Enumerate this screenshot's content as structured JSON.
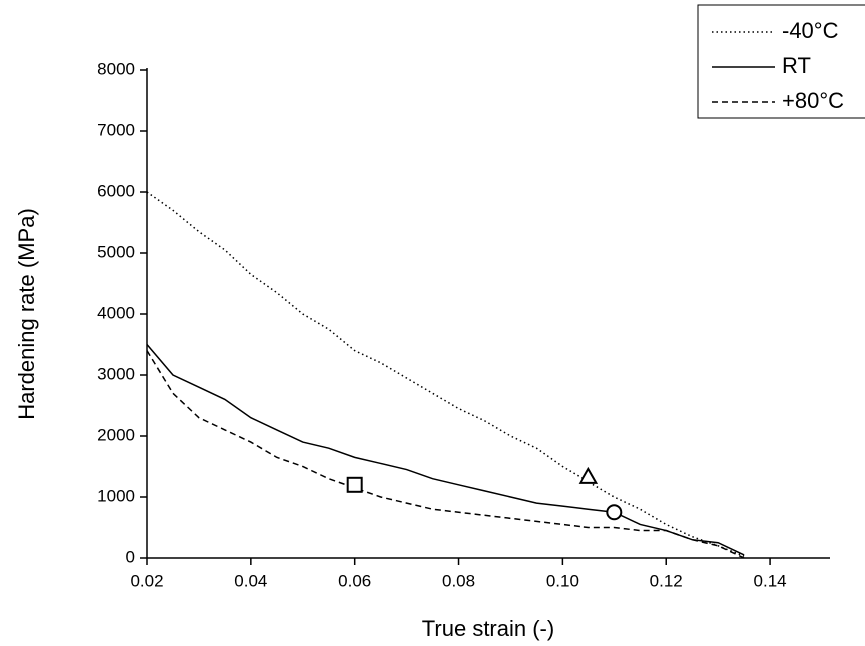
{
  "chart_data": {
    "type": "line",
    "xlabel": "True strain (-)",
    "ylabel": "Hardening rate (MPa)",
    "x": [
      0.02,
      0.025,
      0.03,
      0.035,
      0.04,
      0.045,
      0.05,
      0.055,
      0.06,
      0.065,
      0.07,
      0.075,
      0.08,
      0.085,
      0.09,
      0.095,
      0.1,
      0.105,
      0.11,
      0.115,
      0.12,
      0.125,
      0.13,
      0.135,
      0.14,
      0.145
    ],
    "series": [
      {
        "name": "-40°C",
        "color": "#000000",
        "dash": "dotted",
        "values": [
          6000,
          5700,
          5350,
          5050,
          4650,
          4350,
          4000,
          3750,
          3400,
          3200,
          2950,
          2700,
          2450,
          2250,
          2000,
          1800,
          1500,
          1250,
          1000,
          800,
          550,
          350,
          200,
          30,
          null,
          null
        ]
      },
      {
        "name": "RT",
        "color": "#000000",
        "dash": "solid",
        "values": [
          3500,
          3000,
          2800,
          2600,
          2300,
          2100,
          1900,
          1800,
          1650,
          1550,
          1450,
          1300,
          1200,
          1100,
          1000,
          900,
          850,
          800,
          750,
          550,
          450,
          300,
          250,
          50,
          null,
          20
        ]
      },
      {
        "name": "+80°C",
        "color": "#000000",
        "dash": "dashed",
        "values": [
          3400,
          2700,
          2300,
          2100,
          1900,
          1650,
          1500,
          1300,
          1150,
          1000,
          900,
          800,
          750,
          700,
          650,
          600,
          550,
          500,
          500,
          450,
          450,
          300,
          200,
          0,
          null,
          null
        ]
      }
    ],
    "markers": [
      {
        "shape": "square",
        "x": 0.06,
        "y": 1200
      },
      {
        "shape": "triangle",
        "x": 0.105,
        "y": 1330
      },
      {
        "shape": "circle",
        "x": 0.11,
        "y": 750
      }
    ],
    "xlim": [
      0.02,
      0.15
    ],
    "ylim": [
      0,
      8000
    ],
    "xticks": [
      0.02,
      0.04,
      0.06,
      0.08,
      {
        "value": 0.1,
        "label": "0.10"
      },
      0.12,
      0.14
    ],
    "yticks": [
      0,
      1000,
      2000,
      3000,
      4000,
      5000,
      6000,
      7000,
      8000
    ],
    "legend": "top-right"
  }
}
